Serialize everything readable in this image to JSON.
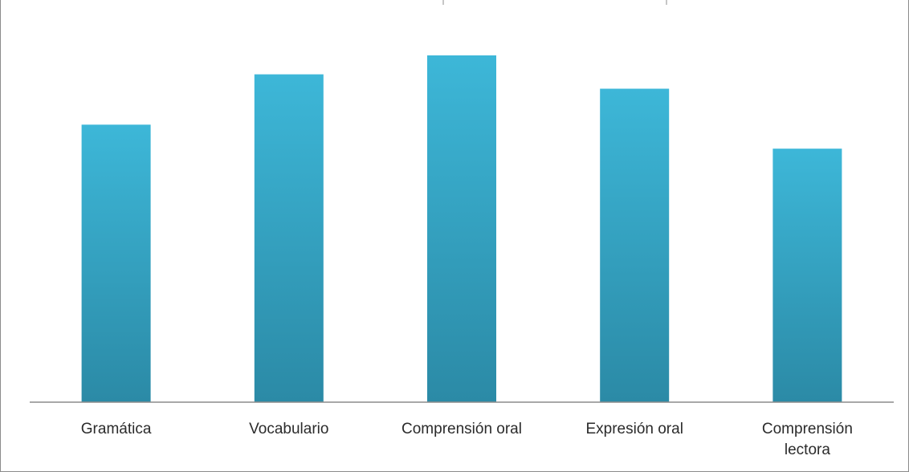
{
  "chart_data": {
    "type": "bar",
    "categories": [
      [
        "Gramática"
      ],
      [
        "Vocabulario"
      ],
      [
        "Comprensión oral"
      ],
      [
        "Expresión oral"
      ],
      [
        "Comprensión",
        "lectora"
      ]
    ],
    "values": [
      7.5,
      8.86,
      9.37,
      8.47,
      6.85
    ],
    "ylim": [
      0,
      10
    ],
    "grid": false,
    "legend": "none",
    "colors": {
      "bar_top": "#3db7d8",
      "bar_bottom": "#2b8aa6",
      "axis": "#8c8c8c",
      "border": "#8c8c8c"
    }
  }
}
